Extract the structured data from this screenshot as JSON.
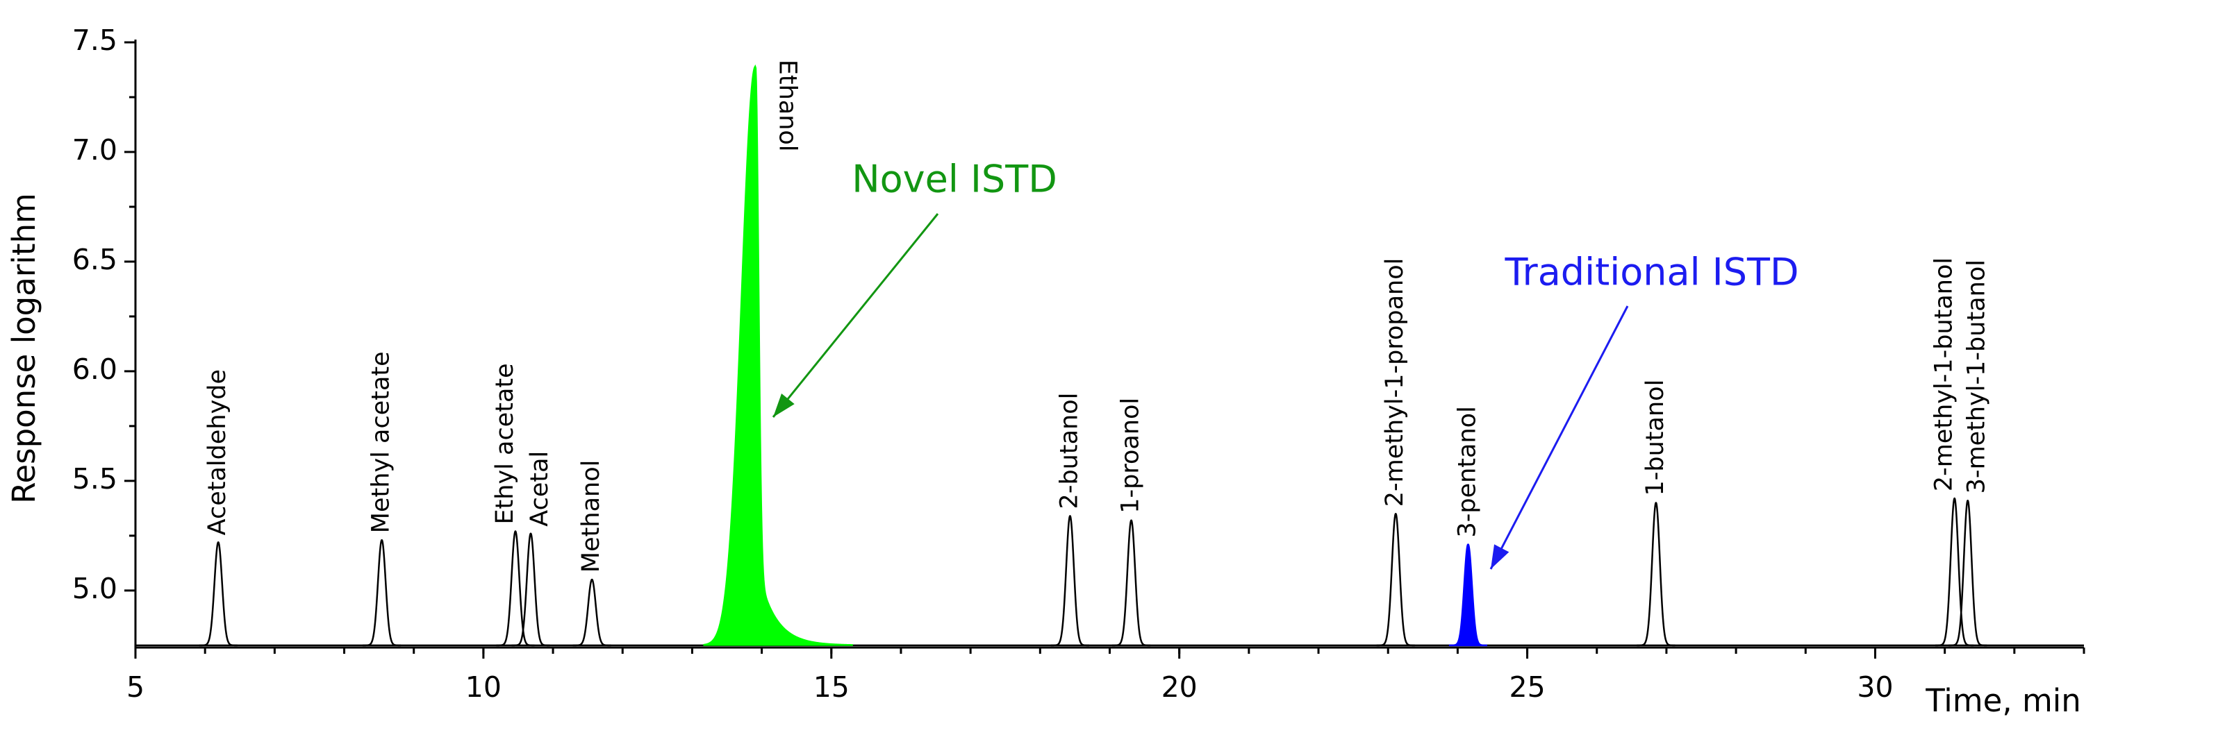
{
  "chart_data": {
    "type": "chromatogram",
    "y_label": "Response logarithm",
    "x_label": "Time, min",
    "xlim": [
      5,
      33
    ],
    "xticks": [
      5,
      10,
      15,
      20,
      25,
      30
    ],
    "ylim": [
      4.74,
      7.5
    ],
    "yticks": [
      {
        "value": 5.0,
        "label": "5.0"
      },
      5.5,
      {
        "value": 6.0,
        "label": "6.0"
      },
      6.5,
      {
        "value": 7.0,
        "label": "7.0"
      },
      7.5
    ],
    "baseline": 4.75,
    "line_color": "#000000",
    "peaks": [
      {
        "name": "Acetaldehyde",
        "time": 6.19,
        "height": 5.22
      },
      {
        "name": "Methyl acetate",
        "time": 8.54,
        "height": 5.23
      },
      {
        "name": "Ethyl acetate",
        "time": 10.46,
        "height": 5.27
      },
      {
        "name": "Acetal",
        "time": 10.68,
        "height": 5.26
      },
      {
        "name": "Methanol",
        "time": 11.56,
        "height": 5.05
      },
      {
        "name": "Ethanol",
        "time": 13.91,
        "height": 7.39,
        "color": "#00ff00",
        "tailing": true
      },
      {
        "name": "2-butanol",
        "time": 18.43,
        "height": 5.34
      },
      {
        "name": "1-proanol",
        "time": 19.31,
        "height": 5.32
      },
      {
        "name": "2-methyl-1-propanol",
        "time": 23.11,
        "height": 5.35
      },
      {
        "name": "3-pentanol",
        "time": 24.15,
        "height": 5.21,
        "color": "#0000ff"
      },
      {
        "name": "1-butanol",
        "time": 26.85,
        "height": 5.4
      },
      {
        "name": "2-methyl-1-butanol",
        "time": 31.14,
        "height": 5.42
      },
      {
        "name": "3-methyl-1-butanol",
        "time": 31.33,
        "height": 5.41
      }
    ],
    "annotations": [
      {
        "text": "Novel ISTD",
        "color": "#129612"
      },
      {
        "text": "Traditional ISTD",
        "color": "#1c1cf0"
      }
    ]
  }
}
